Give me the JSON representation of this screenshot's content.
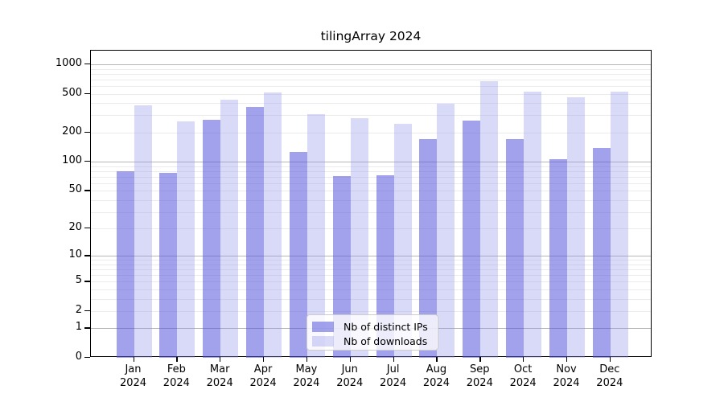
{
  "chart_data": {
    "type": "bar",
    "title": "tilingArray 2024",
    "categories": [
      "Jan 2024",
      "Feb 2024",
      "Mar 2024",
      "Apr 2024",
      "May 2024",
      "Jun 2024",
      "Jul 2024",
      "Aug 2024",
      "Sep 2024",
      "Oct 2024",
      "Nov 2024",
      "Dec 2024"
    ],
    "series": [
      {
        "name": "Nb of distinct IPs",
        "fill": "#5656dc",
        "fill_alpha": 0.55,
        "color_on_white": "#a2a2ec",
        "values": [
          80,
          77,
          270,
          365,
          126,
          71,
          73,
          171,
          265,
          171,
          106,
          140
        ]
      },
      {
        "name": "Nb of downloads",
        "fill": "#9292eb",
        "fill_alpha": 0.35,
        "color_on_white": "#d9daf8",
        "values": [
          380,
          260,
          435,
          515,
          310,
          281,
          246,
          395,
          670,
          525,
          460,
          525
        ]
      }
    ],
    "y_axis": {
      "scale": "log10(value+1)",
      "tick_values": [
        0,
        1,
        2,
        5,
        10,
        20,
        50,
        100,
        200,
        500,
        1000
      ],
      "max": 1380
    },
    "x_axis": {
      "year_line": "2024"
    },
    "grid": true,
    "legend_position": "lower-center-inside",
    "gridline_major_color": "#b6b6b6",
    "gridline_minor_color": "#ebebeb"
  }
}
